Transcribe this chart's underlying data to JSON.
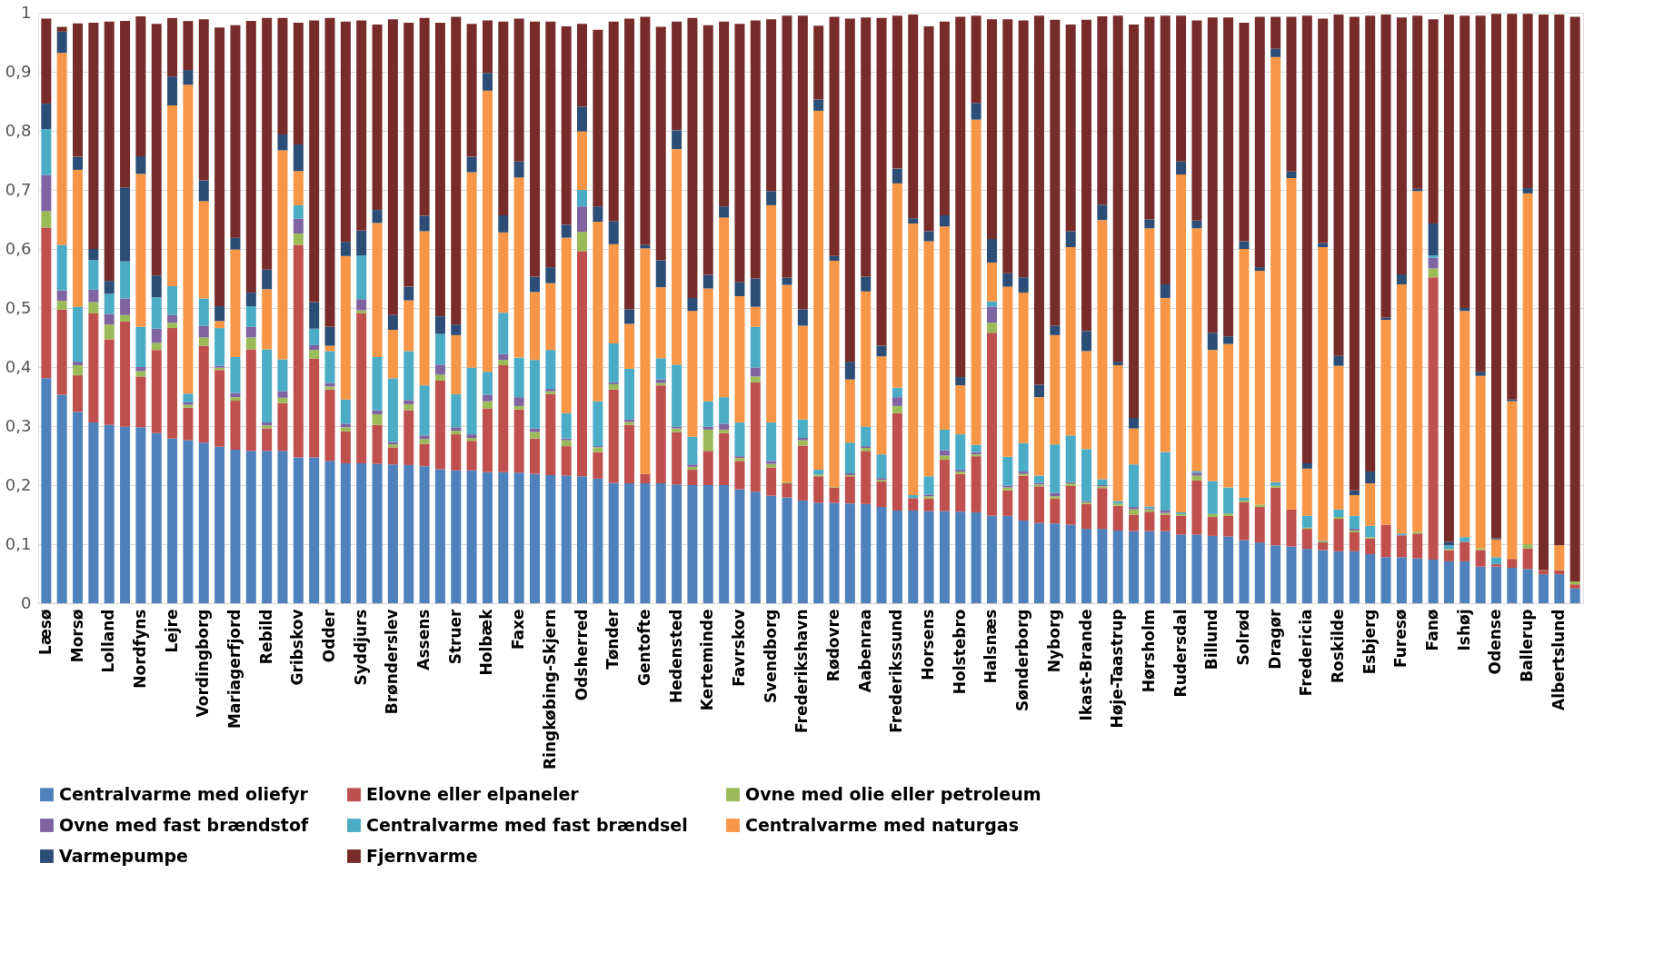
{
  "chart_data": {
    "type": "bar",
    "stacked": true,
    "grid": "y",
    "legend": "bottom",
    "ylim": [
      0,
      1
    ],
    "yticks": [
      0,
      {
        "value": 0.1,
        "label": "0,1"
      },
      {
        "value": 0.2,
        "label": "0,2"
      },
      {
        "value": 0.3,
        "label": "0,3"
      },
      {
        "value": 0.4,
        "label": "0,4"
      },
      {
        "value": 0.5,
        "label": "0,5"
      },
      {
        "value": 0.6,
        "label": "0,6"
      },
      {
        "value": 0.7,
        "label": "0,7"
      },
      {
        "value": 0.8,
        "label": "0,8"
      },
      {
        "value": 0.9,
        "label": "0,9"
      },
      1
    ],
    "categories": [
      "Læsø",
      null,
      "Morsø",
      null,
      "Lolland",
      null,
      "Nordfyns",
      null,
      "Lejre",
      null,
      "Vordingborg",
      null,
      "Mariagerfjord",
      null,
      "Rebild",
      null,
      "Gribskov",
      null,
      "Odder",
      null,
      "Syddjurs",
      null,
      "Brønderslev",
      null,
      "Assens",
      null,
      "Struer",
      null,
      "Holbæk",
      null,
      "Faxe",
      null,
      "Ringkøbing-Skjern",
      null,
      "Odsherred",
      null,
      "Tønder",
      null,
      "Gentofte",
      null,
      "Hedensted",
      null,
      "Kerteminde",
      null,
      "Favrskov",
      null,
      "Svendborg",
      null,
      "Frederikshavn",
      null,
      "Rødovre",
      null,
      "Aabenraa",
      null,
      "Frederikssund",
      null,
      "Horsens",
      null,
      "Holstebro",
      null,
      "Halsnæs",
      null,
      "Sønderborg",
      null,
      "Nyborg",
      null,
      "Ikast-Brande",
      null,
      "Høje-Taastrup",
      null,
      "Hørsholm",
      null,
      "Rudersdal",
      null,
      "Billund",
      null,
      "Solrød",
      null,
      "Dragør",
      null,
      "Fredericia",
      null,
      "Roskilde",
      null,
      "Esbjerg",
      null,
      "Furesø",
      null,
      "Fanø",
      null,
      "Ishøj",
      null,
      "Odense",
      null,
      "Ballerup",
      null,
      "Albertslund",
      null
    ],
    "series": [
      {
        "name": "Centralvarme med oliefyr",
        "color": "#4f81bd",
        "values": [
          0.381,
          0.353,
          0.324,
          0.306,
          0.302,
          0.299,
          0.298,
          0.288,
          0.279,
          0.276,
          0.272,
          0.265,
          0.26,
          0.258,
          0.258,
          0.258,
          0.247,
          0.247,
          0.241,
          0.237,
          0.237,
          0.236,
          0.235,
          0.234,
          0.232,
          0.227,
          0.225,
          0.225,
          0.222,
          0.222,
          0.221,
          0.219,
          0.217,
          0.216,
          0.215,
          0.211,
          0.204,
          0.203,
          0.203,
          0.203,
          0.201,
          0.2,
          0.2,
          0.2,
          0.193,
          0.189,
          0.182,
          0.179,
          0.174,
          0.17,
          0.17,
          0.169,
          0.168,
          0.163,
          0.157,
          0.157,
          0.156,
          0.156,
          0.155,
          0.154,
          0.148,
          0.148,
          0.14,
          0.136,
          0.135,
          0.133,
          0.126,
          0.126,
          0.123,
          0.122,
          0.122,
          0.122,
          0.116,
          0.116,
          0.114,
          0.113,
          0.107,
          0.103,
          0.098,
          0.096,
          0.092,
          0.09,
          0.088,
          0.088,
          0.083,
          0.078,
          0.078,
          0.076,
          0.074,
          0.071,
          0.071,
          0.062,
          0.062,
          0.06,
          0.058,
          0.049,
          0.049,
          0.025
        ]
      },
      {
        "name": "Elovne eller elpaneler",
        "color": "#c0504d",
        "values": [
          0.255,
          0.144,
          0.062,
          0.185,
          0.145,
          0.178,
          0.086,
          0.141,
          0.187,
          0.055,
          0.164,
          0.13,
          0.083,
          0.172,
          0.038,
          0.081,
          0.36,
          0.167,
          0.121,
          0.054,
          0.254,
          0.066,
          0.029,
          0.093,
          0.038,
          0.15,
          0.061,
          0.05,
          0.108,
          0.181,
          0.107,
          0.06,
          0.137,
          0.05,
          0.381,
          0.045,
          0.158,
          0.099,
          0.016,
          0.166,
          0.089,
          0.026,
          0.058,
          0.088,
          0.048,
          0.185,
          0.048,
          0.024,
          0.093,
          0.045,
          0.026,
          0.046,
          0.09,
          0.043,
          0.165,
          0.021,
          0.021,
          0.087,
          0.064,
          0.095,
          0.31,
          0.043,
          0.076,
          0.062,
          0.042,
          0.066,
          0.042,
          0.069,
          0.042,
          0.028,
          0.033,
          0.028,
          0.032,
          0.092,
          0.032,
          0.035,
          0.064,
          0.06,
          0.098,
          0.063,
          0.034,
          0.013,
          0.055,
          0.032,
          0.027,
          0.055,
          0.037,
          0.042,
          0.478,
          0.019,
          0.033,
          0.028,
          0.004,
          0.015,
          0.035,
          0.007,
          0.007,
          0.007
        ]
      },
      {
        "name": "Ovne med olie eller petroleum",
        "color": "#9bbb59",
        "values": [
          0.028,
          0.015,
          0.017,
          0.019,
          0.025,
          0.011,
          0.009,
          0.012,
          0.009,
          0.005,
          0.014,
          0.004,
          0.006,
          0.02,
          0.005,
          0.009,
          0.019,
          0.015,
          0.005,
          0.007,
          0.005,
          0.018,
          0.005,
          0.01,
          0.008,
          0.01,
          0.006,
          0.005,
          0.012,
          0.009,
          0.006,
          0.011,
          0.005,
          0.01,
          0.033,
          0.008,
          0.009,
          0.005,
          0,
          0.004,
          0.006,
          0.005,
          0.036,
          0.006,
          0.005,
          0.01,
          0.006,
          0.002,
          0.009,
          0.003,
          0.001,
          0.002,
          0.005,
          0.003,
          0.012,
          0,
          0.004,
          0.007,
          0.004,
          0.003,
          0.017,
          0.005,
          0.003,
          0.003,
          0.004,
          0.004,
          0.003,
          0.003,
          0.004,
          0.009,
          0.004,
          0.003,
          0.003,
          0.008,
          0.005,
          0.004,
          0.003,
          0.004,
          0.003,
          0,
          0.002,
          0.002,
          0.003,
          0.003,
          0.002,
          0,
          0,
          0.003,
          0.015,
          0.002,
          0,
          0.003,
          0,
          0,
          0.007,
          0,
          0,
          0.005
        ]
      },
      {
        "name": "Ovne med fast brændstof",
        "color": "#8064a2",
        "values": [
          0.061,
          0.018,
          0.006,
          0.021,
          0.018,
          0.028,
          0.007,
          0.024,
          0.013,
          0.004,
          0.02,
          0.003,
          0.007,
          0.018,
          0.005,
          0.011,
          0.025,
          0.008,
          0.006,
          0.006,
          0.019,
          0.007,
          0.004,
          0.007,
          0.006,
          0.017,
          0.006,
          0.006,
          0.011,
          0.01,
          0.015,
          0.006,
          0.004,
          0.003,
          0.043,
          0.002,
          0.003,
          0.004,
          0,
          0.006,
          0.003,
          0.004,
          0.005,
          0.01,
          0.003,
          0.015,
          0.005,
          0,
          0.004,
          0,
          0,
          0.003,
          0.003,
          0.003,
          0.015,
          0,
          0.003,
          0.009,
          0.003,
          0.004,
          0.027,
          0.003,
          0.004,
          0.003,
          0.006,
          0.002,
          0.002,
          0.002,
          0,
          0.004,
          0.002,
          0.004,
          0,
          0.005,
          0,
          0,
          0,
          0,
          0,
          0,
          0,
          0,
          0,
          0.003,
          0,
          0,
          0,
          0,
          0.018,
          0,
          0,
          0,
          0,
          0,
          0,
          0,
          0,
          0
        ]
      },
      {
        "name": "Centralvarme med fast brændsel",
        "color": "#4bacc6",
        "values": [
          0.078,
          0.077,
          0.093,
          0.05,
          0.034,
          0.063,
          0.068,
          0.053,
          0.049,
          0.015,
          0.046,
          0.064,
          0.061,
          0.035,
          0.124,
          0.054,
          0.023,
          0.028,
          0.054,
          0.041,
          0.074,
          0.09,
          0.108,
          0.083,
          0.085,
          0.052,
          0.056,
          0.113,
          0.039,
          0.07,
          0.067,
          0.116,
          0.066,
          0.043,
          0.028,
          0.076,
          0.066,
          0.086,
          0,
          0.036,
          0.105,
          0.047,
          0.043,
          0.045,
          0.057,
          0.069,
          0.065,
          0,
          0.031,
          0.008,
          0,
          0.052,
          0.033,
          0.04,
          0.016,
          0.005,
          0.031,
          0.035,
          0.06,
          0.012,
          0.009,
          0.049,
          0.048,
          0.012,
          0.082,
          0.079,
          0.088,
          0.01,
          0.004,
          0.072,
          0.003,
          0.099,
          0.003,
          0.003,
          0.056,
          0.044,
          0.005,
          0,
          0.006,
          0,
          0.02,
          0.001,
          0.013,
          0.022,
          0.019,
          0,
          0.003,
          0,
          0.004,
          0.006,
          0.008,
          0,
          0.012,
          0,
          0,
          0,
          0,
          0
        ]
      },
      {
        "name": "Centralvarme med naturgas",
        "color": "#f79646",
        "values": [
          0,
          0.325,
          0.232,
          0,
          0,
          0,
          0.259,
          0,
          0.306,
          0.523,
          0.165,
          0.012,
          0.182,
          0,
          0.102,
          0.354,
          0.058,
          0,
          0.009,
          0.243,
          0,
          0.227,
          0.082,
          0.086,
          0.261,
          0,
          0.1,
          0.331,
          0.476,
          0.136,
          0.305,
          0.115,
          0.113,
          0.297,
          0.099,
          0.304,
          0.168,
          0.076,
          0.382,
          0.12,
          0.365,
          0.213,
          0.191,
          0.304,
          0.214,
          0.034,
          0.368,
          0.334,
          0.159,
          0.608,
          0.383,
          0.107,
          0.229,
          0.166,
          0.346,
          0.46,
          0.398,
          0.344,
          0.083,
          0.551,
          0.066,
          0.288,
          0.255,
          0.133,
          0.185,
          0.319,
          0.166,
          0.439,
          0.23,
          0.061,
          0.471,
          0.261,
          0.572,
          0.411,
          0.222,
          0.243,
          0.421,
          0.396,
          0.72,
          0.561,
          0.08,
          0.497,
          0.243,
          0.035,
          0.072,
          0.347,
          0.422,
          0.577,
          0,
          0,
          0.383,
          0.292,
          0.03,
          0.267,
          0.594,
          0,
          0.042,
          0
        ]
      },
      {
        "name": "Varmepumpe",
        "color": "#2c4d75",
        "values": [
          0.043,
          0.036,
          0.022,
          0.019,
          0.022,
          0.125,
          0.03,
          0.037,
          0.049,
          0.025,
          0.035,
          0.025,
          0.02,
          0.023,
          0.033,
          0.027,
          0.045,
          0.045,
          0.032,
          0.024,
          0.042,
          0.022,
          0.025,
          0.023,
          0.026,
          0.03,
          0.018,
          0.026,
          0.03,
          0.029,
          0.027,
          0.026,
          0.027,
          0.022,
          0.042,
          0.026,
          0.039,
          0.025,
          0.006,
          0.046,
          0.032,
          0.022,
          0.023,
          0.019,
          0.024,
          0.048,
          0.024,
          0.012,
          0.028,
          0.019,
          0.008,
          0.03,
          0.025,
          0.018,
          0.025,
          0.009,
          0.017,
          0.019,
          0.014,
          0.028,
          0.04,
          0.023,
          0.026,
          0.021,
          0.016,
          0.027,
          0.034,
          0.026,
          0.006,
          0.018,
          0.015,
          0.023,
          0.022,
          0.013,
          0.029,
          0.013,
          0.013,
          0.006,
          0.014,
          0.011,
          0.009,
          0.007,
          0.017,
          0.008,
          0.02,
          0.004,
          0.017,
          0.004,
          0.054,
          0.006,
          0.005,
          0.007,
          0.002,
          0.003,
          0.009,
          0,
          0,
          0
        ]
      },
      {
        "name": "Fjernvarme",
        "color": "#772c2a",
        "values": [
          0.144,
          0.008,
          0.226,
          0.383,
          0.439,
          0.282,
          0.237,
          0.426,
          0.099,
          0.083,
          0.273,
          0.472,
          0.36,
          0.46,
          0.426,
          0.197,
          0.206,
          0.477,
          0.523,
          0.373,
          0.356,
          0.314,
          0.501,
          0.447,
          0.335,
          0.497,
          0.521,
          0.225,
          0.089,
          0.328,
          0.242,
          0.432,
          0.416,
          0.336,
          0.14,
          0.299,
          0.338,
          0.492,
          0.386,
          0.395,
          0.184,
          0.474,
          0.423,
          0.313,
          0.437,
          0.437,
          0.291,
          0.444,
          0.497,
          0.125,
          0.405,
          0.581,
          0.439,
          0.555,
          0.259,
          0.345,
          0.347,
          0.328,
          0.61,
          0.148,
          0.372,
          0.43,
          0.435,
          0.625,
          0.518,
          0.35,
          0.527,
          0.319,
          0.586,
          0.666,
          0.343,
          0.455,
          0.247,
          0.339,
          0.534,
          0.54,
          0.37,
          0.424,
          0.054,
          0.262,
          0.758,
          0.38,
          0.578,
          0.802,
          0.772,
          0.513,
          0.435,
          0.293,
          0.346,
          0.893,
          0.495,
          0.603,
          0.888,
          0.653,
          0.295,
          0.941,
          0.899,
          0.956
        ]
      }
    ]
  }
}
